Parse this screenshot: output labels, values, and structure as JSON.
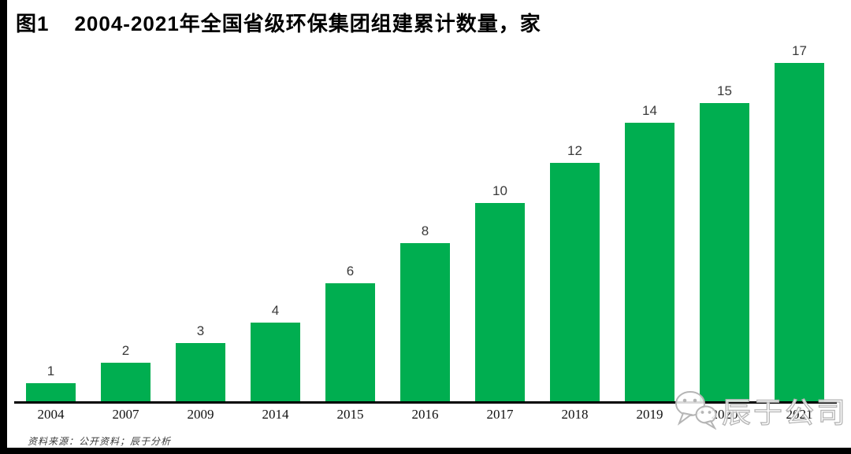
{
  "page": {
    "title": {
      "figure_label": "图1",
      "text": "2004-2021年全国省级环保集团组建累计数量，家"
    },
    "source_note": "资料来源：公开资料；辰于分析",
    "watermark": {
      "icon": "wechat-icon",
      "brand": "辰于公司"
    }
  },
  "chart_data": {
    "type": "bar",
    "title": "2004-2021年全国省级环保集团组建累计数量，家",
    "unit": "家",
    "categories": [
      "2004",
      "2007",
      "2009",
      "2014",
      "2015",
      "2016",
      "2017",
      "2018",
      "2019",
      "2020",
      "2021"
    ],
    "values": [
      1,
      2,
      3,
      4,
      6,
      8,
      10,
      12,
      14,
      15,
      17
    ],
    "xlabel": "",
    "ylabel": "",
    "ylim": [
      0,
      17
    ],
    "grid": false,
    "legend_position": "none",
    "value_labels_shown": true,
    "bar_color": "#00AE50",
    "axis_color": "#000000",
    "watermark_gray": "#b5b5b5"
  }
}
